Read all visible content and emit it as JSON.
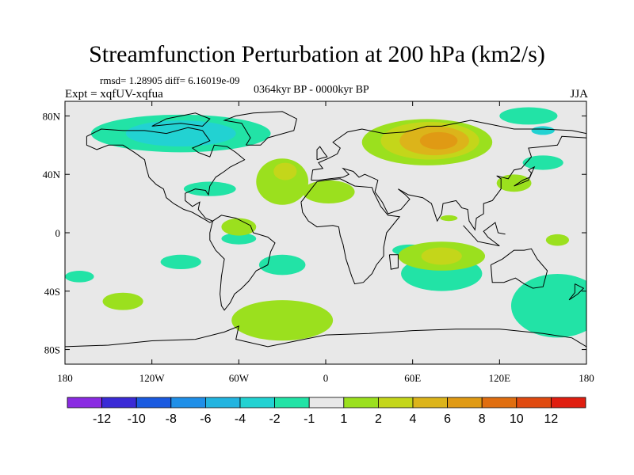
{
  "title": "Streamfunction Perturbation at 200 hPa (km2/s)",
  "stats_line": "rmsd= 1.28905 diff= 6.16019e-09",
  "experiment": "Expt = xqfUV-xqfua",
  "period": "0364kyr BP - 0000kyr BP",
  "season": "JJA",
  "map": {
    "background": "#e8e8e8",
    "lat_ticks": [
      "80N",
      "40N",
      "0",
      "40S",
      "80S"
    ],
    "lon_ticks": [
      "180",
      "120W",
      "60W",
      "0",
      "60E",
      "120E",
      "180"
    ]
  },
  "colorbar": {
    "colors": [
      "#8a2be2",
      "#3a2ad6",
      "#1a5ae0",
      "#1f8fe8",
      "#22b4e0",
      "#22d2d2",
      "#22e3a6",
      "#e8e8e8",
      "#9be01e",
      "#c4d61a",
      "#dcb41a",
      "#e09a14",
      "#e06e10",
      "#e04a10",
      "#e01e10"
    ],
    "labels": [
      "-12",
      "-10",
      "-8",
      "-6",
      "-4",
      "-2",
      "-1",
      "1",
      "2",
      "4",
      "6",
      "8",
      "10",
      "12"
    ]
  },
  "field_regions": [
    {
      "level": "-1",
      "color": "#22e3a6",
      "lon": -100,
      "lat": 68,
      "rx": 62,
      "ry": 13
    },
    {
      "level": "-2",
      "color": "#22d2d2",
      "lon": -100,
      "lat": 68,
      "rx": 38,
      "ry": 9
    },
    {
      "level": "-1",
      "color": "#22e3a6",
      "lon": -80,
      "lat": 30,
      "rx": 18,
      "ry": 5
    },
    {
      "level": "-1",
      "color": "#22e3a6",
      "lon": -60,
      "lat": -4,
      "rx": 12,
      "ry": 4
    },
    {
      "level": "-1",
      "color": "#22e3a6",
      "lon": -100,
      "lat": -20,
      "rx": 14,
      "ry": 5
    },
    {
      "level": "-1",
      "color": "#22e3a6",
      "lon": -170,
      "lat": -30,
      "rx": 10,
      "ry": 4
    },
    {
      "level": "-1",
      "color": "#22e3a6",
      "lon": -30,
      "lat": -22,
      "rx": 16,
      "ry": 7
    },
    {
      "level": "-1",
      "color": "#22e3a6",
      "lon": 140,
      "lat": 80,
      "rx": 20,
      "ry": 6
    },
    {
      "level": "-1",
      "color": "#22e3a6",
      "lon": 150,
      "lat": 48,
      "rx": 14,
      "ry": 5
    },
    {
      "level": "-2",
      "color": "#22d2d2",
      "lon": 150,
      "lat": 70,
      "rx": 8,
      "ry": 3
    },
    {
      "level": "-1",
      "color": "#22e3a6",
      "lon": 160,
      "lat": -50,
      "rx": 32,
      "ry": 22
    },
    {
      "level": "-1",
      "color": "#22e3a6",
      "lon": 58,
      "lat": -12,
      "rx": 12,
      "ry": 4
    },
    {
      "level": "-1",
      "color": "#22e3a6",
      "lon": 80,
      "lat": -28,
      "rx": 28,
      "ry": 12
    },
    {
      "level": "1",
      "color": "#9be01e",
      "lon": 70,
      "lat": 62,
      "rx": 45,
      "ry": 16
    },
    {
      "level": "2",
      "color": "#c4d61a",
      "lon": 72,
      "lat": 63,
      "rx": 34,
      "ry": 13
    },
    {
      "level": "4",
      "color": "#dcb41a",
      "lon": 75,
      "lat": 63,
      "rx": 24,
      "ry": 10
    },
    {
      "level": "6",
      "color": "#e09a14",
      "lon": 78,
      "lat": 63,
      "rx": 13,
      "ry": 6
    },
    {
      "level": "1",
      "color": "#9be01e",
      "lon": -30,
      "lat": 35,
      "rx": 18,
      "ry": 16
    },
    {
      "level": "2",
      "color": "#c4d61a",
      "lon": -28,
      "lat": 42,
      "rx": 8,
      "ry": 6
    },
    {
      "level": "1",
      "color": "#9be01e",
      "lon": 2,
      "lat": 28,
      "rx": 18,
      "ry": 8
    },
    {
      "level": "1",
      "color": "#9be01e",
      "lon": -60,
      "lat": 4,
      "rx": 12,
      "ry": 6
    },
    {
      "level": "1",
      "color": "#9be01e",
      "lon": -140,
      "lat": -47,
      "rx": 14,
      "ry": 6
    },
    {
      "level": "1",
      "color": "#9be01e",
      "lon": -30,
      "lat": -60,
      "rx": 35,
      "ry": 14
    },
    {
      "level": "1",
      "color": "#9be01e",
      "lon": 80,
      "lat": -16,
      "rx": 30,
      "ry": 10
    },
    {
      "level": "2",
      "color": "#c4d61a",
      "lon": 80,
      "lat": -16,
      "rx": 14,
      "ry": 6
    },
    {
      "level": "1",
      "color": "#9be01e",
      "lon": 130,
      "lat": 34,
      "rx": 12,
      "ry": 6
    },
    {
      "level": "1",
      "color": "#9be01e",
      "lon": 85,
      "lat": 10,
      "rx": 6,
      "ry": 2
    },
    {
      "level": "1",
      "color": "#9be01e",
      "lon": 160,
      "lat": -5,
      "rx": 8,
      "ry": 4
    }
  ]
}
